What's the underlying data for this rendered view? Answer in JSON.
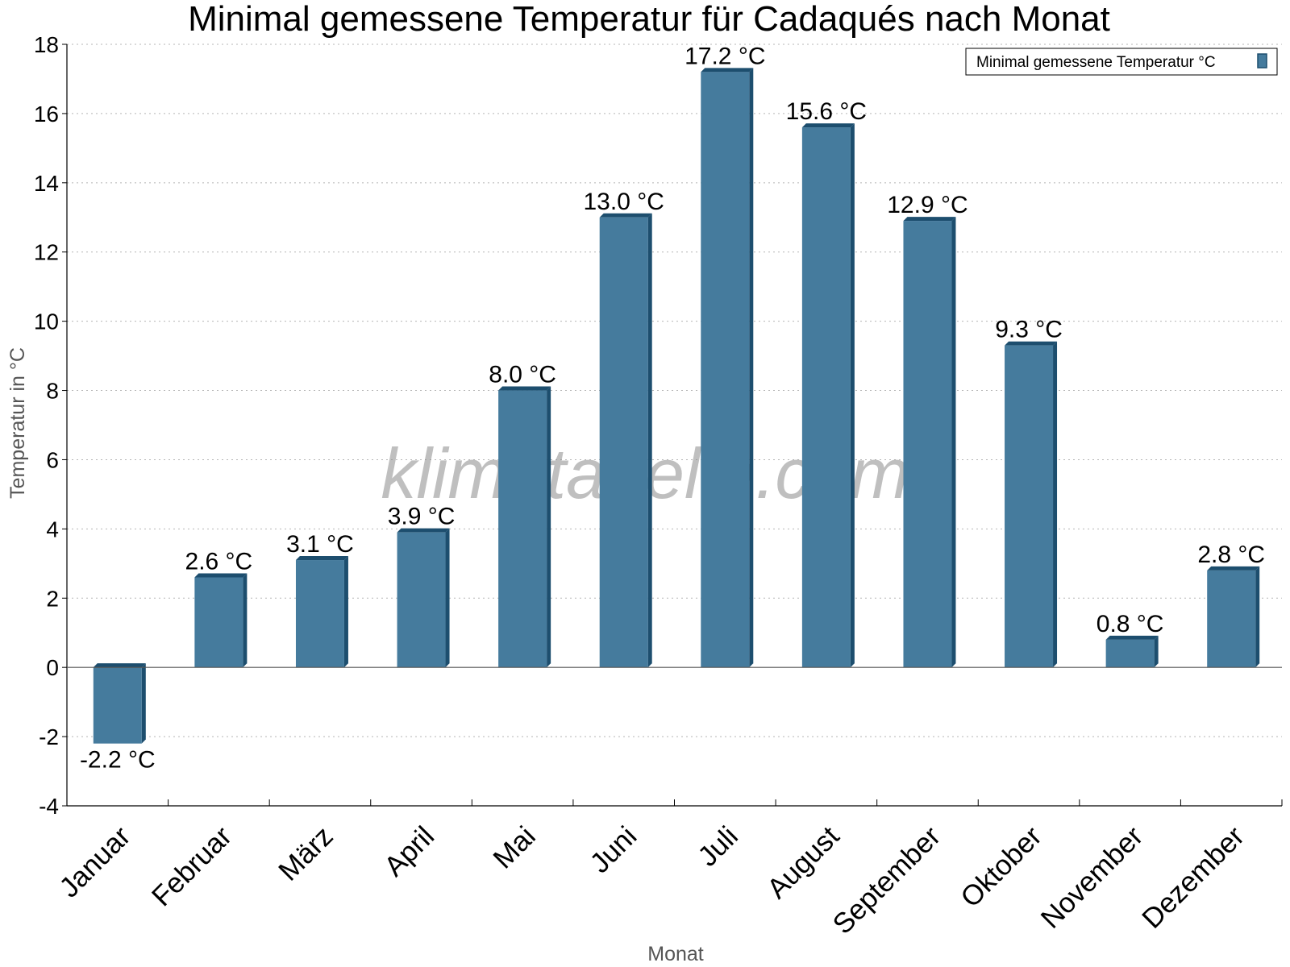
{
  "watermark": "klimatabelle.com",
  "chart_data": {
    "type": "bar",
    "title": "Minimal gemessene Temperatur für Cadaqués nach Monat",
    "xlabel": "Monat",
    "ylabel": "Temperatur in °C",
    "ylim": [
      -4,
      18
    ],
    "yticks": [
      -4,
      -2,
      0,
      2,
      4,
      6,
      8,
      10,
      12,
      14,
      16,
      18
    ],
    "grid": "horizontal dotted",
    "legend_position": "top-right",
    "categories": [
      "Januar",
      "Februar",
      "März",
      "April",
      "Mai",
      "Juni",
      "Juli",
      "August",
      "September",
      "Oktober",
      "November",
      "Dezember"
    ],
    "series": [
      {
        "name": "Minimal gemessene Temperatur °C",
        "values": [
          -2.2,
          2.6,
          3.1,
          3.9,
          8.0,
          13.0,
          17.2,
          15.6,
          12.9,
          9.3,
          0.8,
          2.8
        ],
        "labels": [
          "-2.2 °C",
          "2.6 °C",
          "3.1 °C",
          "3.9 °C",
          "8.0 °C",
          "13.0 °C",
          "17.2 °C",
          "15.6 °C",
          "12.9 °C",
          "9.3 °C",
          "0.8 °C",
          "2.8 °C"
        ],
        "color": "#457b9d",
        "side_color": "#1d4e6e"
      }
    ]
  }
}
